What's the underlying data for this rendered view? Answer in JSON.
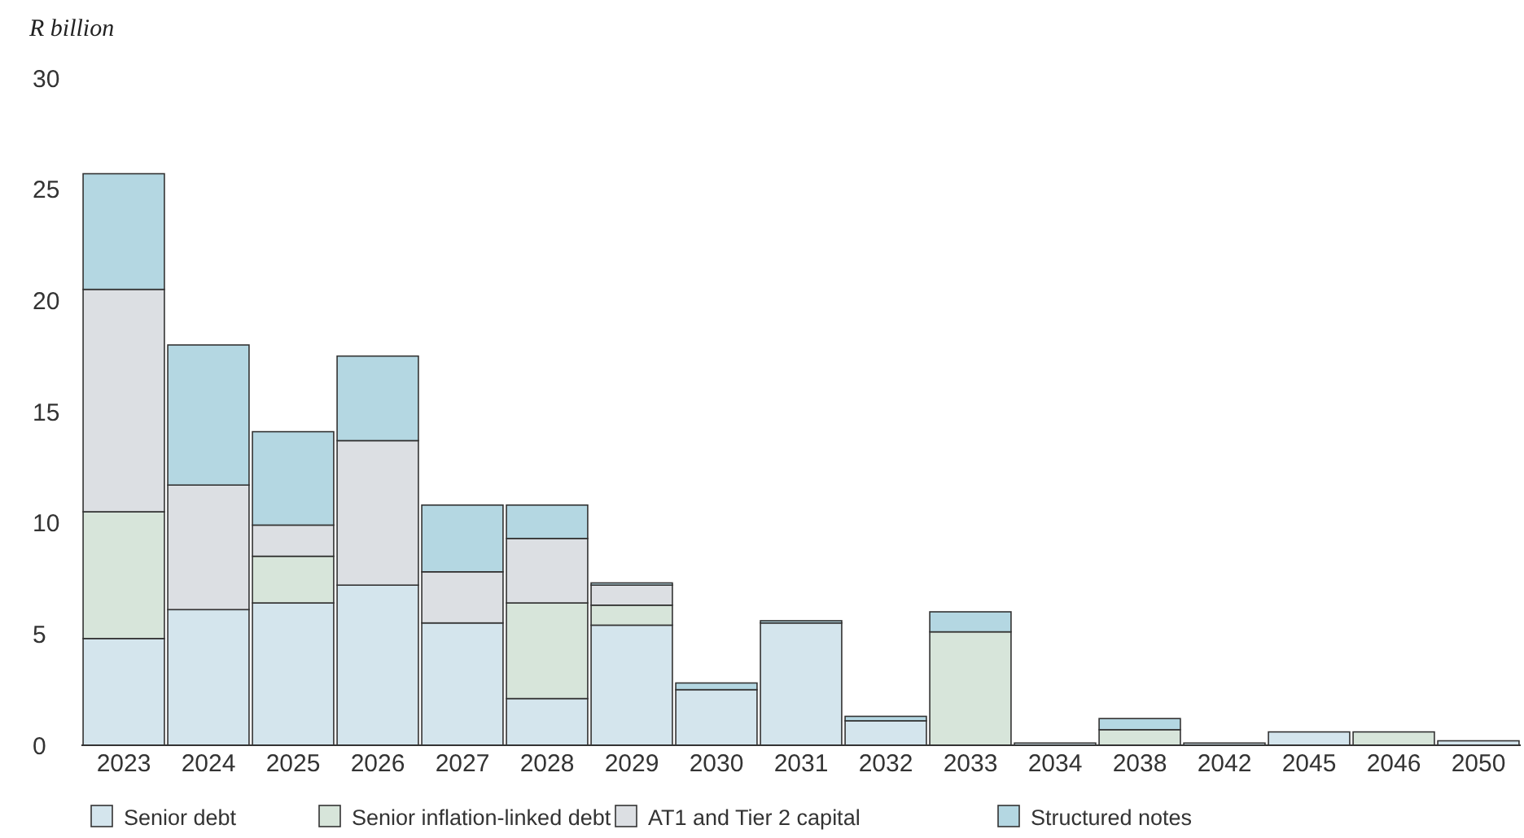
{
  "chart_data": {
    "type": "bar",
    "stacked": true,
    "ylabel": "R billion",
    "categories": [
      "2023",
      "2024",
      "2025",
      "2026",
      "2027",
      "2028",
      "2029",
      "2030",
      "2031",
      "2032",
      "2033",
      "2034",
      "2038",
      "2042",
      "2045",
      "2046",
      "2050"
    ],
    "series": [
      {
        "name": "Senior debt",
        "color": "#d4e5ed",
        "values": [
          4.8,
          6.1,
          6.4,
          7.2,
          5.5,
          2.1,
          5.4,
          2.5,
          5.5,
          1.1,
          0,
          0.1,
          0,
          0.1,
          0.6,
          0,
          0.2
        ]
      },
      {
        "name": "Senior inflation-linked debt",
        "color": "#d7e5da",
        "values": [
          5.7,
          0,
          2.1,
          0,
          0,
          4.3,
          0.9,
          0,
          0,
          0,
          5.1,
          0,
          0.7,
          0,
          0,
          0.6,
          0
        ]
      },
      {
        "name": "AT1 and Tier 2 capital",
        "color": "#dcdfe3",
        "values": [
          10.0,
          5.6,
          1.4,
          6.5,
          2.3,
          2.9,
          0.9,
          0,
          0,
          0,
          0,
          0,
          0,
          0,
          0,
          0,
          0
        ]
      },
      {
        "name": "Structured notes",
        "color": "#b4d7e2",
        "values": [
          5.2,
          6.3,
          4.2,
          3.8,
          3.0,
          1.5,
          0.1,
          0.3,
          0.1,
          0.2,
          0.9,
          0,
          0.5,
          0,
          0,
          0,
          0
        ]
      }
    ],
    "ylim": [
      0,
      30
    ],
    "yticks": [
      0,
      5,
      10,
      15,
      20,
      25,
      30
    ],
    "grid": false,
    "legend": "bottom"
  }
}
